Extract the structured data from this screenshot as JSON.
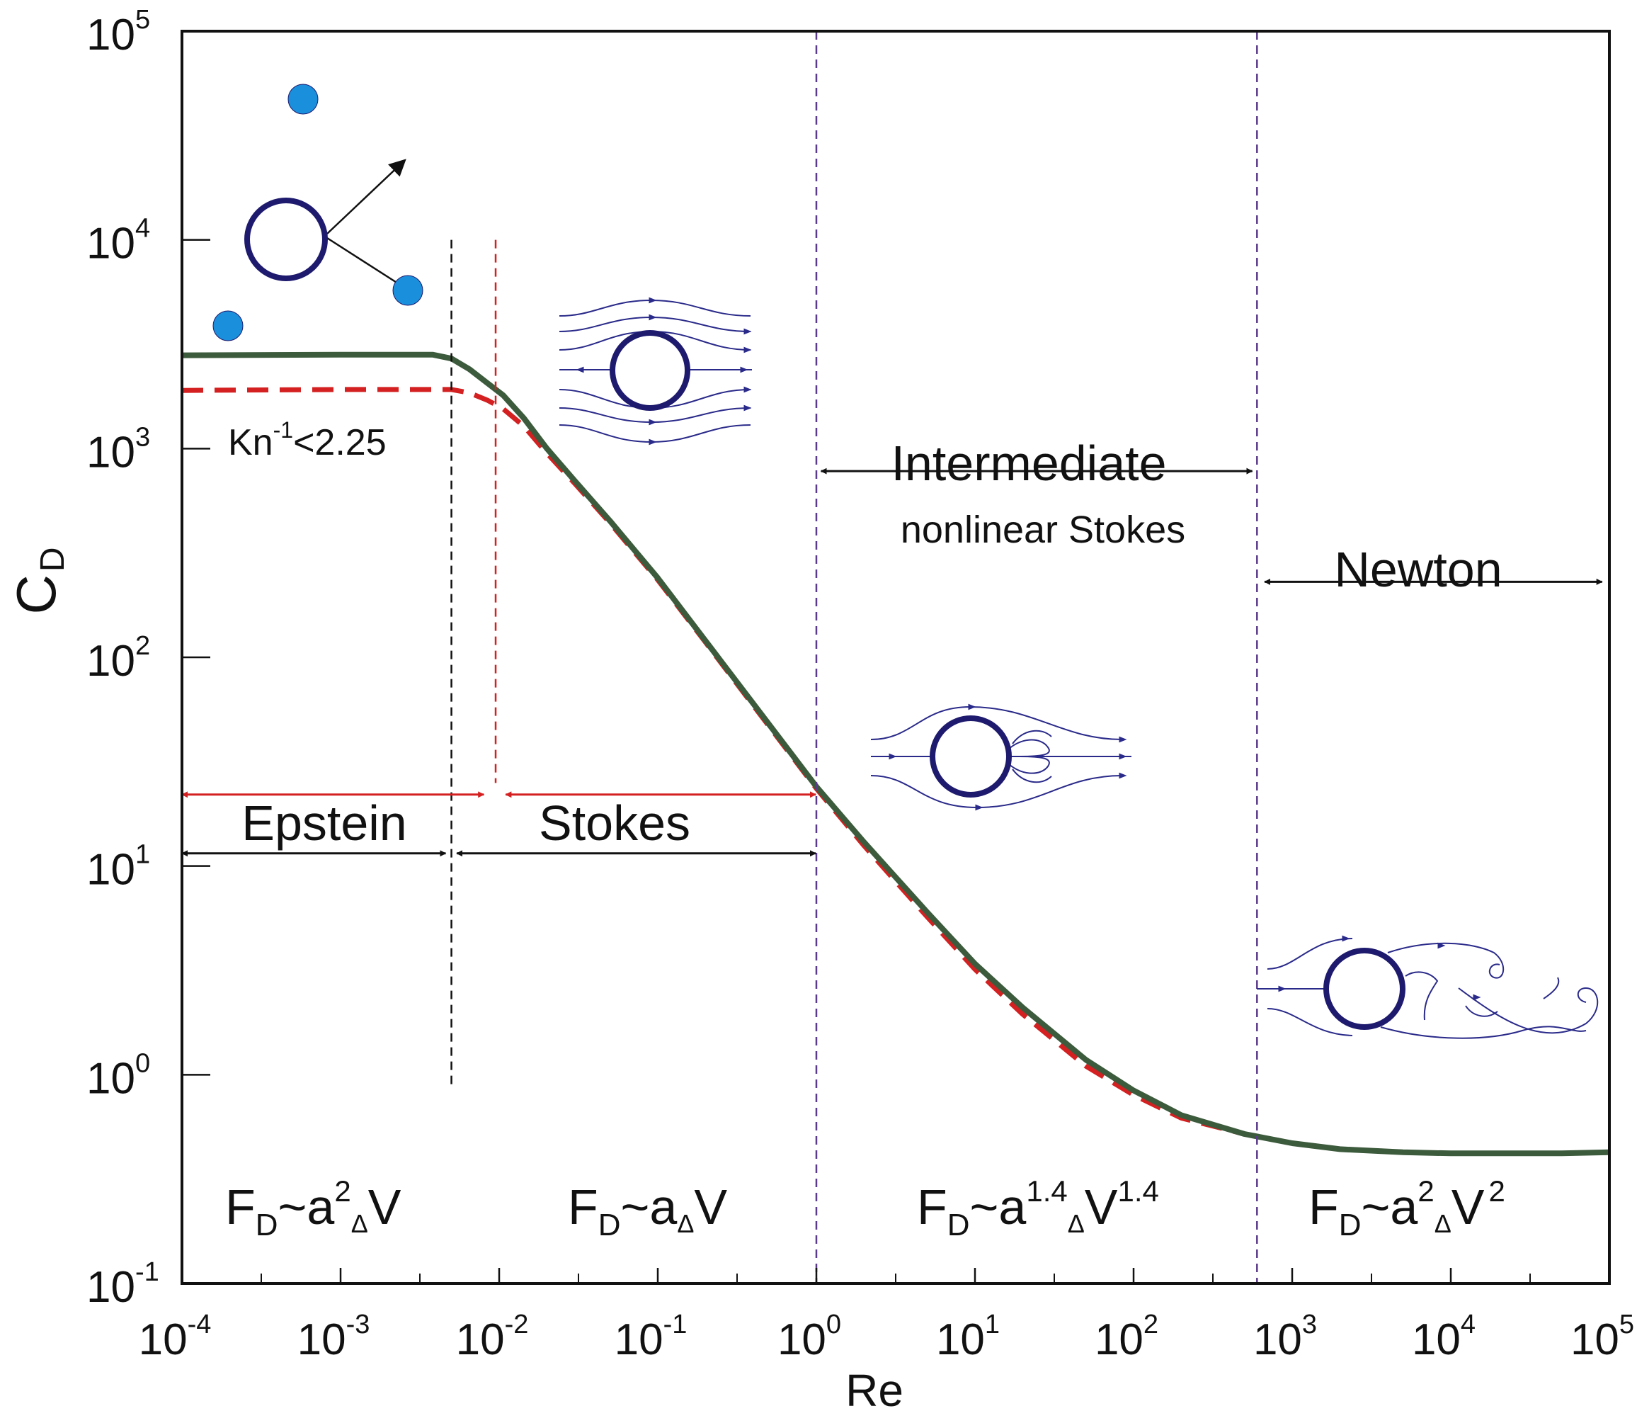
{
  "chart_data": {
    "type": "line",
    "x_scale": "log",
    "y_scale": "log",
    "xlabel": "Re",
    "ylabel_main": "C",
    "ylabel_sub": "D",
    "xlim": [
      0.0001,
      100000
    ],
    "ylim": [
      0.1,
      100000
    ],
    "x_ticks": [
      {
        "value": 0.0001,
        "base": "10",
        "exp": "-4"
      },
      {
        "value": 0.001,
        "base": "10",
        "exp": "-3"
      },
      {
        "value": 0.01,
        "base": "10",
        "exp": "-2"
      },
      {
        "value": 0.1,
        "base": "10",
        "exp": "-1"
      },
      {
        "value": 1,
        "base": "10",
        "exp": "0"
      },
      {
        "value": 10,
        "base": "10",
        "exp": "1"
      },
      {
        "value": 100,
        "base": "10",
        "exp": "2"
      },
      {
        "value": 1000,
        "base": "10",
        "exp": "3"
      },
      {
        "value": 10000,
        "base": "10",
        "exp": "4"
      },
      {
        "value": 100000,
        "base": "10",
        "exp": "5"
      }
    ],
    "y_ticks": [
      {
        "value": 0.1,
        "base": "10",
        "exp": "-1"
      },
      {
        "value": 1,
        "base": "10",
        "exp": "0"
      },
      {
        "value": 10,
        "base": "10",
        "exp": "1"
      },
      {
        "value": 100,
        "base": "10",
        "exp": "2"
      },
      {
        "value": 1000,
        "base": "10",
        "exp": "3"
      },
      {
        "value": 10000,
        "base": "10",
        "exp": "4"
      },
      {
        "value": 100000,
        "base": "10",
        "exp": "5"
      }
    ],
    "series": [
      {
        "style": "solid",
        "color": "#3c5a3c",
        "x": [
          0.0001,
          0.001,
          0.0038,
          0.005,
          0.0065,
          0.0085,
          0.0106,
          0.0143,
          0.02,
          0.03,
          0.05,
          0.1,
          0.2,
          0.5,
          1,
          2,
          5,
          10,
          20,
          50,
          100,
          200,
          500,
          1000,
          2000,
          5000,
          10000,
          20000,
          50000,
          100000
        ],
        "y": [
          2800,
          2820,
          2820,
          2700,
          2400,
          2050,
          1800,
          1400,
          1000,
          700,
          450,
          240,
          120,
          48,
          24,
          13,
          6.0,
          3.4,
          2.1,
          1.18,
          0.84,
          0.64,
          0.52,
          0.47,
          0.44,
          0.425,
          0.42,
          0.42,
          0.42,
          0.425
        ]
      },
      {
        "style": "dashed",
        "color": "#d42020",
        "x": [
          0.0001,
          0.001,
          0.005,
          0.0065,
          0.0085,
          0.0106,
          0.0143,
          0.02,
          0.03,
          0.05,
          0.1,
          0.2,
          0.5,
          1,
          2,
          5,
          10,
          20,
          50,
          100,
          200,
          500
        ],
        "y": [
          1900,
          1920,
          1920,
          1850,
          1700,
          1550,
          1280,
          950,
          680,
          440,
          235,
          118,
          47,
          23.5,
          12.5,
          5.7,
          3.2,
          1.95,
          1.1,
          0.8,
          0.62,
          0.52
        ]
      }
    ],
    "vlines": [
      {
        "x": 0.005,
        "color": "#111111",
        "ymin": 0.9,
        "ymax": 10000
      },
      {
        "x": 0.0095,
        "color": "#d42020",
        "ymin": 25,
        "ymax": 10000
      },
      {
        "x": 1,
        "color": "#5a3a8a",
        "ymin": 0.1,
        "ymax": 100000
      },
      {
        "x": 600,
        "color": "#5a3a8a",
        "ymin": 0.1,
        "ymax": 100000
      }
    ],
    "arrows": [
      {
        "x1": 0.0001,
        "x2": 0.008,
        "y": 22,
        "color": "#d42020"
      },
      {
        "x1": 0.011,
        "x2": 0.99,
        "y": 22,
        "color": "#d42020"
      },
      {
        "x1": 0.0001,
        "x2": 0.0046,
        "y": 11.5,
        "color": "#111111"
      },
      {
        "x1": 0.0054,
        "x2": 0.99,
        "y": 11.5,
        "color": "#111111"
      },
      {
        "x1": 1.07,
        "x2": 560,
        "y": 780,
        "color": "#111111"
      },
      {
        "x1": 670,
        "x2": 90000,
        "y": 230,
        "color": "#111111"
      }
    ],
    "annotations": {
      "kn": {
        "base": "Kn",
        "sup": "-1",
        "rest": "<2.25"
      },
      "epstein": "Epstein",
      "stokes": "Stokes",
      "intermediate": "Intermediate",
      "nonlinear": "nonlinear Stokes",
      "newton": "Newton",
      "formulas": [
        {
          "F": "F",
          "Fsub": "D",
          "tilde": "~a",
          "a_exp": "2",
          "delta": "Δ",
          "V": "V",
          "v_exp": ""
        },
        {
          "F": "F",
          "Fsub": "D",
          "tilde": "~a",
          "a_exp": "",
          "delta": "Δ",
          "V": "V",
          "v_exp": ""
        },
        {
          "F": "F",
          "Fsub": "D",
          "tilde": "~a",
          "a_exp": "1.4",
          "delta": "Δ",
          "V": "V",
          "v_exp": "1.4"
        },
        {
          "F": "F",
          "Fsub": "D",
          "tilde": "~a",
          "a_exp": "2",
          "delta": "Δ",
          "V": "V",
          "v_exp": "2"
        }
      ]
    },
    "colors": {
      "sphere_outline": "#1e1a6e",
      "molecule": "#1a90dd",
      "streamline": "#2a2a8a"
    },
    "legend": "none",
    "grid": false
  }
}
